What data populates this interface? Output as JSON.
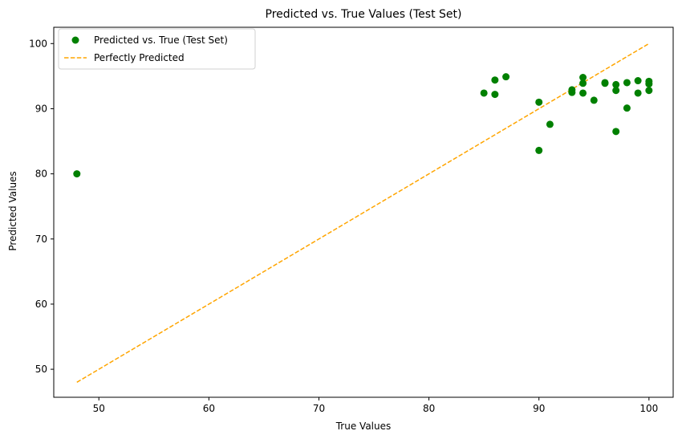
{
  "chart_data": {
    "type": "scatter",
    "title": "Predicted vs. True Values (Test Set)",
    "xlabel": "True Values",
    "ylabel": "Predicted Values",
    "xlim": [
      45.9,
      102.2
    ],
    "ylim": [
      45.7,
      102.5
    ],
    "xticks": [
      50,
      60,
      70,
      80,
      90,
      100
    ],
    "yticks": [
      50,
      60,
      70,
      80,
      90,
      100
    ],
    "grid": false,
    "legend_position": "top-left",
    "series": [
      {
        "name": "Predicted vs. True (Test Set)",
        "kind": "scatter",
        "color": "#008000",
        "points": [
          [
            48,
            80.0
          ],
          [
            85,
            92.4
          ],
          [
            86,
            94.4
          ],
          [
            86,
            92.2
          ],
          [
            87,
            94.9
          ],
          [
            90,
            91.0
          ],
          [
            90,
            83.6
          ],
          [
            91,
            87.6
          ],
          [
            93,
            92.9
          ],
          [
            93,
            92.5
          ],
          [
            94,
            94.8
          ],
          [
            94,
            93.9
          ],
          [
            94,
            92.4
          ],
          [
            95,
            91.3
          ],
          [
            96,
            94.0
          ],
          [
            96,
            93.9
          ],
          [
            97,
            93.7
          ],
          [
            97,
            92.8
          ],
          [
            97,
            86.5
          ],
          [
            98,
            94.0
          ],
          [
            98,
            90.1
          ],
          [
            99,
            94.3
          ],
          [
            99,
            92.4
          ],
          [
            100,
            94.2
          ],
          [
            100,
            93.8
          ],
          [
            100,
            92.8
          ]
        ]
      },
      {
        "name": "Perfectly Predicted",
        "kind": "line",
        "style": "dashed",
        "color": "#FFA500",
        "points": [
          [
            48,
            48
          ],
          [
            100,
            100
          ]
        ]
      }
    ]
  }
}
